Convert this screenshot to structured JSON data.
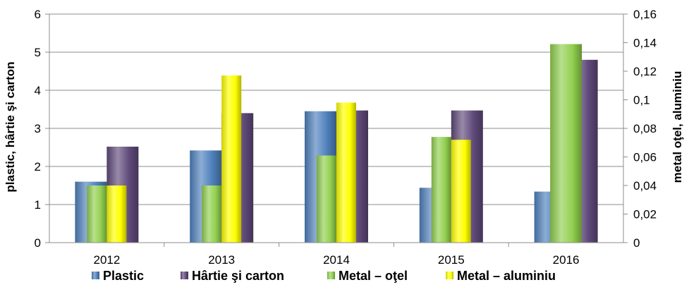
{
  "chart_data": {
    "type": "bar",
    "categories": [
      "2012",
      "2013",
      "2014",
      "2015",
      "2016"
    ],
    "series": [
      {
        "name": "Plastic",
        "axis": "left",
        "color": "#4F81BD",
        "values": [
          1.6,
          2.42,
          3.45,
          1.44,
          1.34
        ]
      },
      {
        "name": "Hârtie şi carton",
        "axis": "left",
        "color": "#604A7B",
        "values": [
          2.52,
          3.4,
          3.47,
          3.47,
          4.8
        ]
      },
      {
        "name": "Metal – oţel",
        "axis": "right",
        "color": "#92D050",
        "values": [
          0.04,
          0.04,
          0.061,
          0.074,
          0.139
        ]
      },
      {
        "name": "Metal – aluminiu",
        "axis": "right",
        "color": "#FFFF00",
        "values": [
          0.04,
          0.117,
          0.098,
          0.072,
          null
        ]
      }
    ],
    "ylabel": "plastic, hârtie şi carton",
    "y2label": "metal oţel, aluminiu",
    "ylim": [
      0,
      6
    ],
    "y2lim": [
      0,
      0.16
    ],
    "yticks": [
      "0",
      "1",
      "2",
      "3",
      "4",
      "5",
      "6"
    ],
    "y2ticks": [
      "0",
      "0,02",
      "0,04",
      "0,06",
      "0,08",
      "0,1",
      "0,12",
      "0,14",
      "0,16"
    ],
    "grid": true,
    "legend_position": "bottom"
  }
}
